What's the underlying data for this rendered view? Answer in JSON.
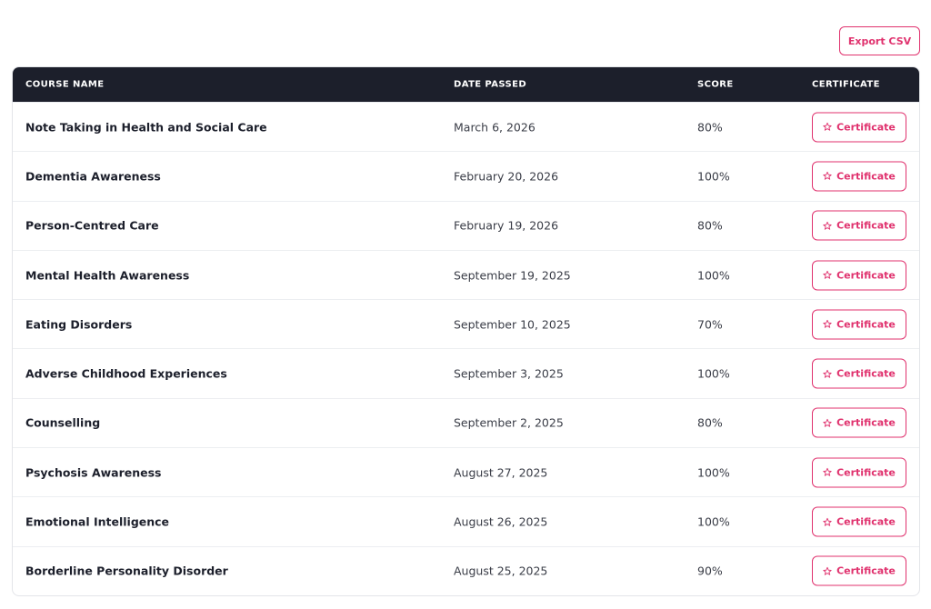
{
  "toolbar": {
    "export_button": "Export CSV"
  },
  "table": {
    "headers": [
      "COURSE NAME",
      "DATE PASSED",
      "SCORE",
      "CERTIFICATE"
    ],
    "rows": [
      [
        "Note Taking in Health and Social Care",
        "March 6, 2026",
        "80%",
        "Certificate"
      ],
      [
        "Dementia Awareness",
        "February 20, 2026",
        "100%",
        "Certificate"
      ],
      [
        "Person-Centred Care",
        "February 19, 2026",
        "80%",
        "Certificate"
      ],
      [
        "Mental Health Awareness",
        "September 19, 2025",
        "100%",
        "Certificate"
      ],
      [
        "Eating Disorders",
        "September 10, 2025",
        "70%",
        "Certificate"
      ],
      [
        "Adverse Childhood Experiences",
        "September 3, 2025",
        "100%",
        "Certificate"
      ],
      [
        "Counselling",
        "September 2, 2025",
        "80%",
        "Certificate"
      ],
      [
        "Psychosis Awareness",
        "August 27, 2025",
        "100%",
        "Certificate"
      ],
      [
        "Emotional Intelligence",
        "August 26, 2025",
        "100%",
        "Certificate"
      ],
      [
        "Borderline Personality Disorder",
        "August 25, 2025",
        "90%",
        "Certificate"
      ]
    ]
  }
}
